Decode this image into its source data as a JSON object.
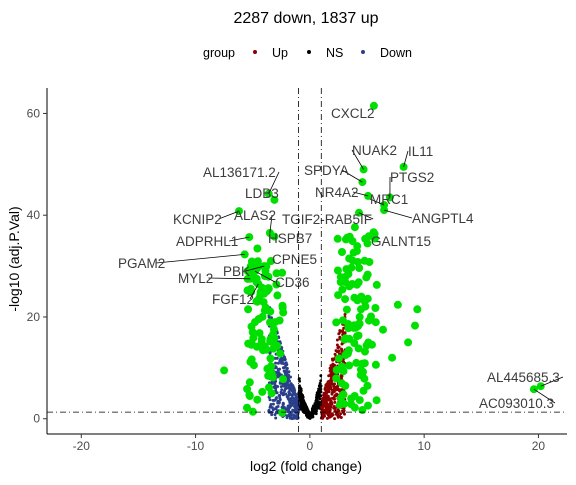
{
  "chart_data": {
    "type": "scatter",
    "title": "2287 down, 1837 up",
    "xlabel": "log2 (fold change)",
    "ylabel": "-log10 (adj.P.Val)",
    "xlim": [
      -23,
      22.5
    ],
    "ylim": [
      -3,
      65
    ],
    "x_ticks": [
      -20,
      -10,
      0,
      10,
      20
    ],
    "y_ticks": [
      0,
      20,
      40,
      60
    ],
    "grid": false,
    "fc_threshold": [
      -1,
      1
    ],
    "p_threshold_y": 1.3,
    "legend": {
      "title": "group",
      "position": "top",
      "entries": [
        {
          "label": "Up",
          "color": "#8b0000"
        },
        {
          "label": "NS",
          "color": "#000000"
        },
        {
          "label": "Down",
          "color": "#2b3f8a"
        }
      ]
    },
    "colors": {
      "up": "#8b0000",
      "ns": "#000000",
      "down": "#2b3f8a",
      "significant": "#00e000"
    },
    "counts": {
      "down": 2287,
      "up": 1837
    },
    "labeled_genes": [
      {
        "name": "CXCL2",
        "x": 5.6,
        "y": 61.5
      },
      {
        "name": "IL11",
        "x": 8.2,
        "y": 49.5
      },
      {
        "name": "NUAK2",
        "x": 4.7,
        "y": 49.0
      },
      {
        "name": "SPDYA",
        "x": 4.6,
        "y": 46.5
      },
      {
        "name": "PTGS2",
        "x": 7.0,
        "y": 43.5
      },
      {
        "name": "NR4A2",
        "x": 5.1,
        "y": 43.8
      },
      {
        "name": "MRC1",
        "x": 6.5,
        "y": 42.0
      },
      {
        "name": "ANGPTL4",
        "x": 6.5,
        "y": 41.0
      },
      {
        "name": "TGIF2-RAB5IF",
        "x": 4.3,
        "y": 40.5
      },
      {
        "name": "GALNT15",
        "x": 5.6,
        "y": 36.0
      },
      {
        "name": "AL136171.2",
        "x": -3.6,
        "y": 44.2
      },
      {
        "name": "LDB3",
        "x": -3.1,
        "y": 43.0
      },
      {
        "name": "KCNIP2",
        "x": -6.2,
        "y": 40.8
      },
      {
        "name": "ALAS2",
        "x": -3.5,
        "y": 36.5
      },
      {
        "name": "HSPB7",
        "x": -3.1,
        "y": 35.8
      },
      {
        "name": "ADPRHL1",
        "x": -5.3,
        "y": 35.7
      },
      {
        "name": "PGAM2",
        "x": -5.7,
        "y": 32.3
      },
      {
        "name": "CPNE5",
        "x": -3.4,
        "y": 31.0
      },
      {
        "name": "MYL2",
        "x": -5.2,
        "y": 27.5
      },
      {
        "name": "PBK",
        "x": -4.0,
        "y": 30.0
      },
      {
        "name": "CD36",
        "x": -4.8,
        "y": 29.0
      },
      {
        "name": "FGF12",
        "x": -4.5,
        "y": 26.5
      },
      {
        "name": "AL445685.3",
        "x": 20.2,
        "y": 6.4
      },
      {
        "name": "AC093010.3",
        "x": 19.6,
        "y": 5.8
      }
    ]
  }
}
